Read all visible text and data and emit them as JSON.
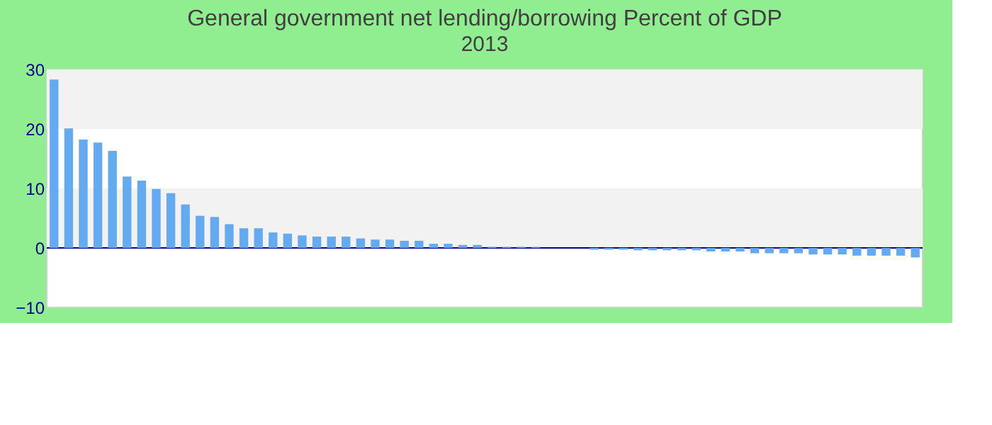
{
  "chart_data": {
    "type": "bar",
    "title": "General government net lending/borrowing  Percent of GDP",
    "subtitle": "2013",
    "categories": [
      null,
      null,
      null,
      null,
      null,
      null,
      null,
      null,
      null,
      null,
      null,
      null,
      null,
      null,
      null,
      null,
      null,
      null,
      null,
      null,
      null,
      null,
      null,
      null,
      null,
      null,
      null,
      null,
      null,
      null,
      null,
      null,
      null,
      null,
      null,
      null,
      null,
      null,
      null,
      null,
      null,
      null,
      null,
      null,
      null,
      null,
      null,
      null,
      null,
      null,
      null,
      null,
      null,
      null,
      null,
      null,
      null,
      null,
      null,
      null
    ],
    "values": [
      28.3,
      20.1,
      18.2,
      17.7,
      16.3,
      12.0,
      11.3,
      9.9,
      9.2,
      7.3,
      5.4,
      5.2,
      4.0,
      3.3,
      3.3,
      2.6,
      2.4,
      2.1,
      1.9,
      1.9,
      1.9,
      1.6,
      1.4,
      1.4,
      1.2,
      1.2,
      0.7,
      0.7,
      0.5,
      0.5,
      0.2,
      0.2,
      0.2,
      0.2,
      0,
      0,
      0,
      -0.3,
      -0.3,
      -0.3,
      -0.4,
      -0.4,
      -0.4,
      -0.4,
      -0.4,
      -0.6,
      -0.6,
      -0.6,
      -0.9,
      -0.9,
      -0.9,
      -0.9,
      -1.1,
      -1.1,
      -1.1,
      -1.3,
      -1.3,
      -1.3,
      -1.3,
      -1.6
    ],
    "color": "#63aaf0",
    "ylim": [
      -10,
      30
    ],
    "yticks": [
      -10,
      0,
      10,
      20,
      30
    ],
    "grid": false,
    "tick_labels": "y",
    "bands": [
      {
        "axis": "y",
        "from": 0,
        "to": 10,
        "color": "#f2f2f2"
      },
      {
        "axis": "y",
        "from": 20,
        "to": 30,
        "color": "#f2f2f2"
      }
    ],
    "ref_lines": [
      {
        "axis": "y",
        "value": 0,
        "color": "#00008b"
      }
    ]
  }
}
